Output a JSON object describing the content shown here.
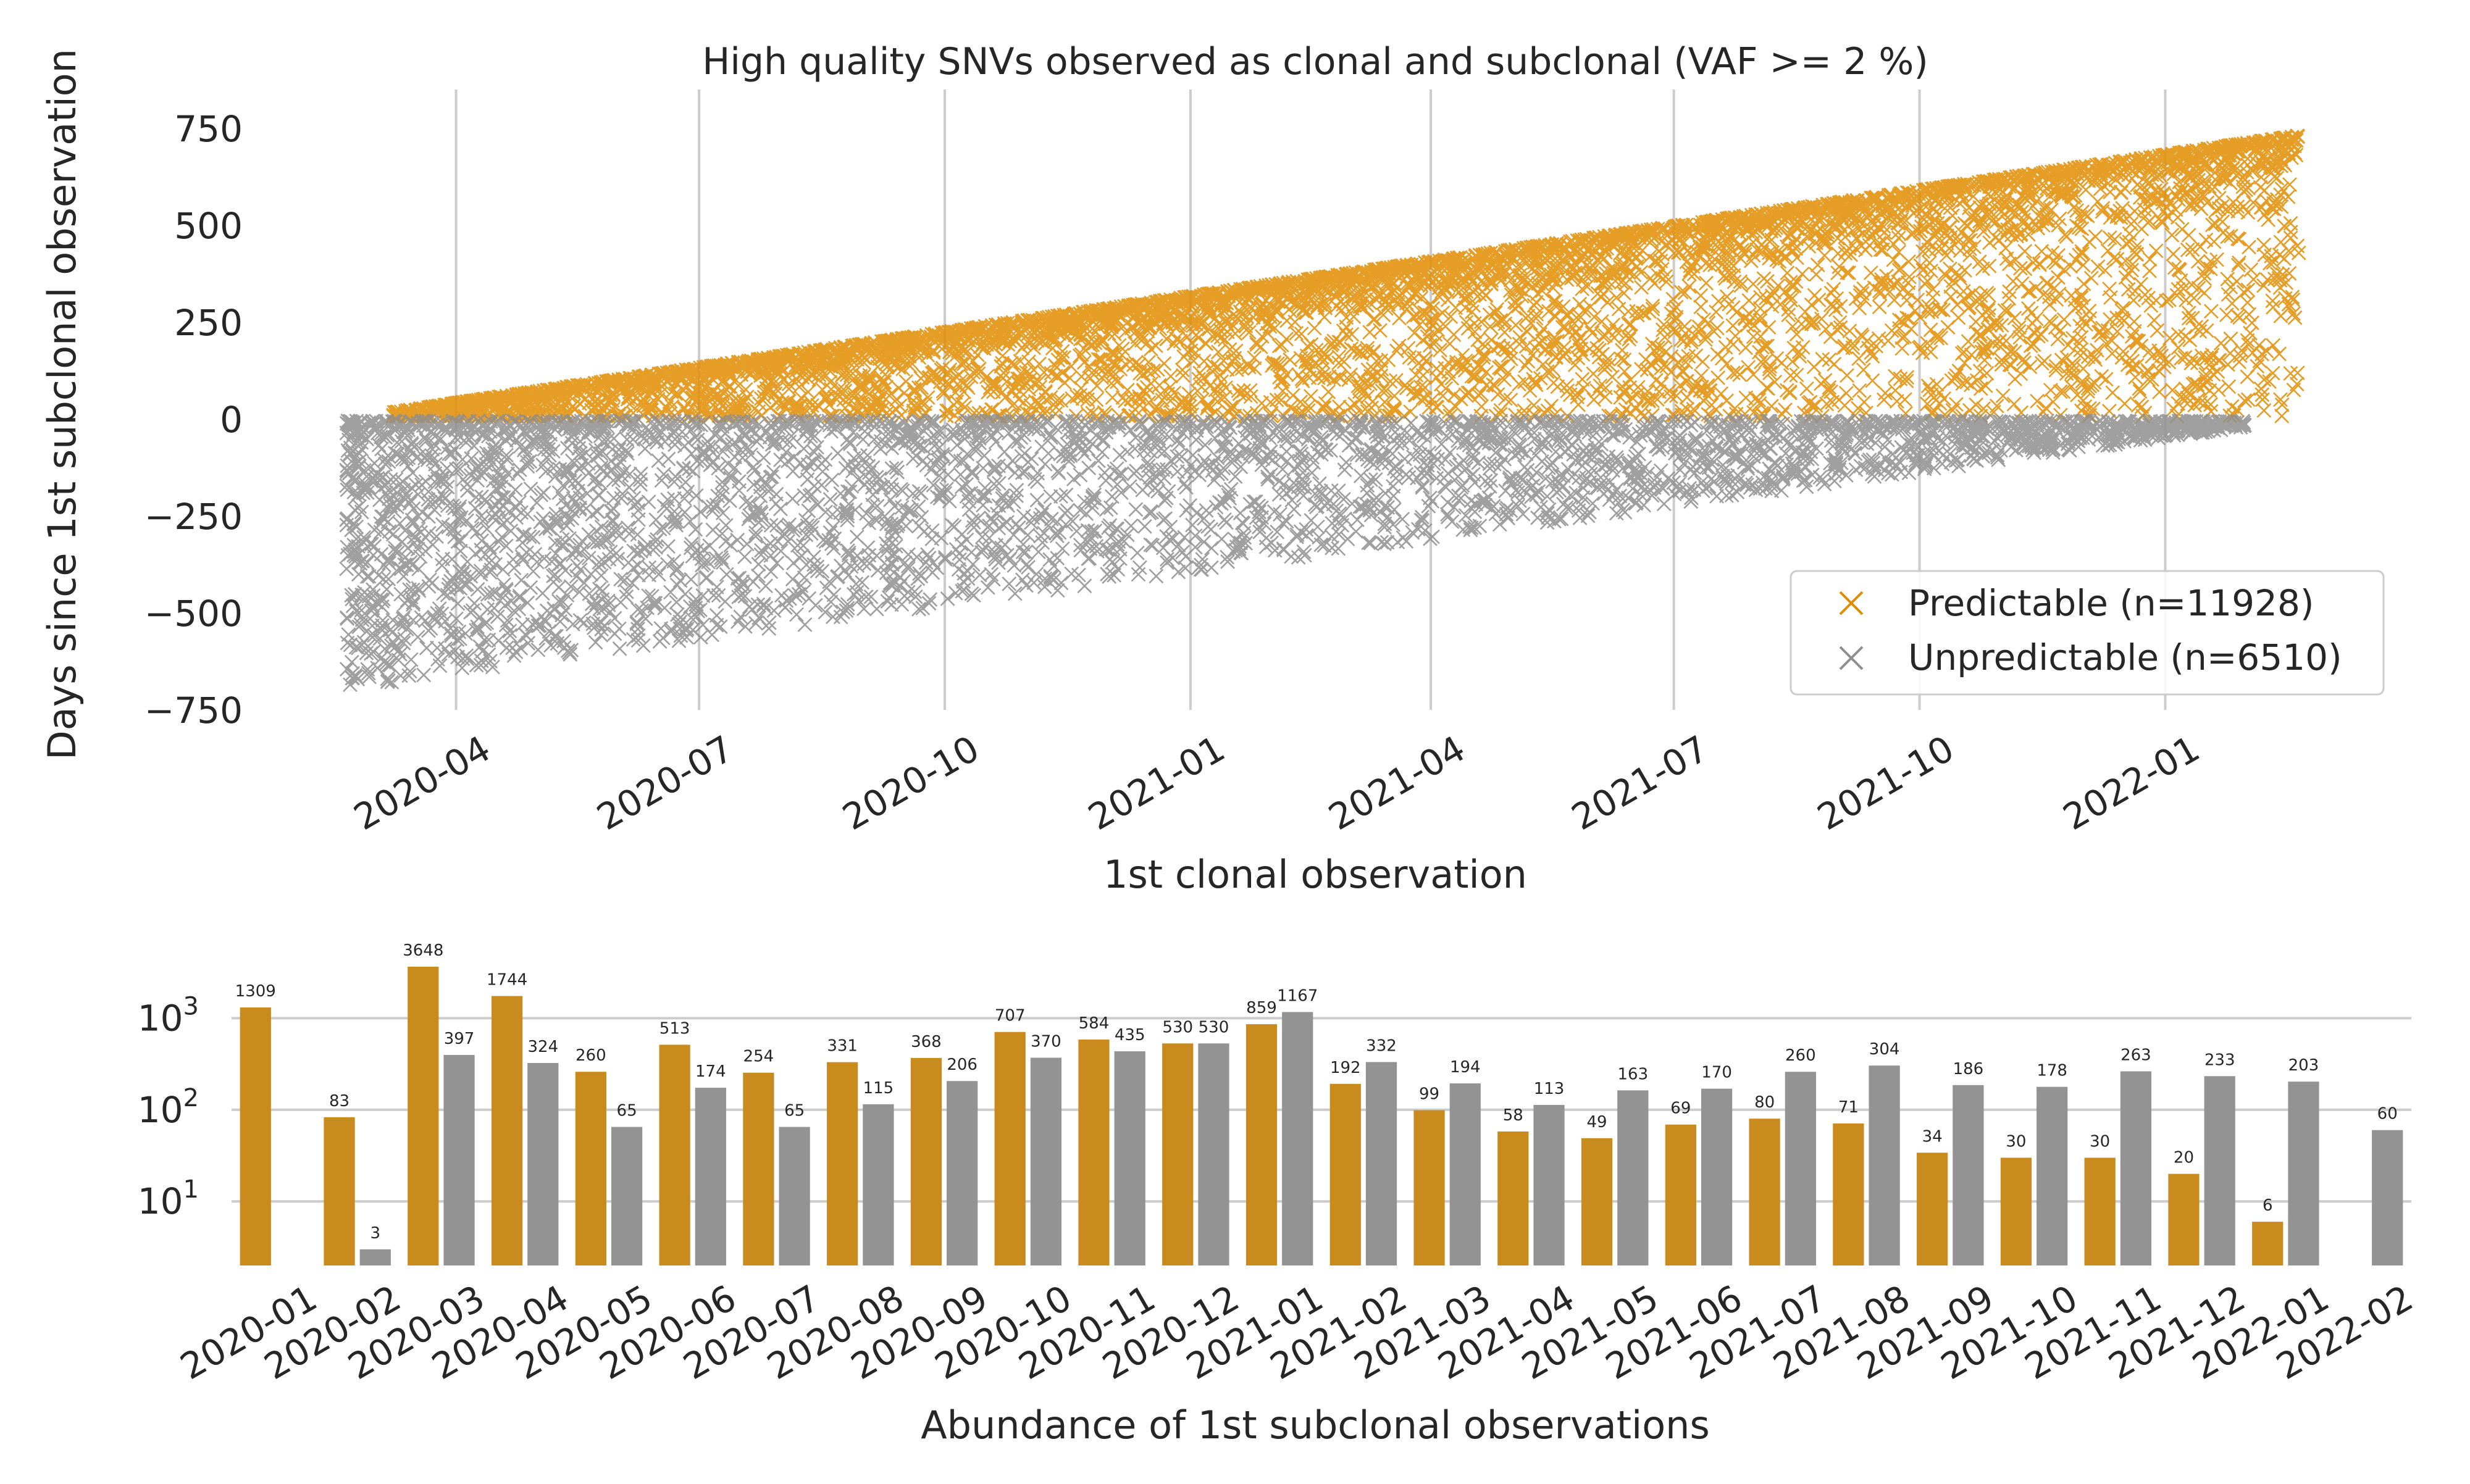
{
  "colors": {
    "predictable": "#E08C00",
    "unpredictable": "#8E8E8E",
    "bar_predictable": "#C98A1E",
    "bar_unpredictable": "#939393",
    "grid": "#CCCCCC",
    "text": "#262626"
  },
  "chart_data": [
    {
      "type": "scatter",
      "title": "High quality SNVs observed as clonal and subclonal (VAF >= 2 %)",
      "xlabel": "1st clonal observation",
      "ylabel": "Days since 1st subclonal observation",
      "xlim": [
        "2020-02-07",
        "2022-02-24"
      ],
      "ylim": [
        -750,
        850
      ],
      "x_ticks": [
        "2020-04",
        "2020-07",
        "2020-10",
        "2021-01",
        "2021-04",
        "2021-07",
        "2021-10",
        "2022-01"
      ],
      "y_ticks": [
        750,
        500,
        250,
        0,
        -250,
        -500,
        -750
      ],
      "grid_x": true,
      "grid_y": false,
      "legend_position": "lower-right",
      "marker": "x",
      "series": [
        {
          "name": "Predictable (n=11928)",
          "count": 11928,
          "y_range": [
            0,
            780
          ]
        },
        {
          "name": "Unpredictable (n=6510)",
          "count": 6510,
          "y_range": [
            -690,
            0
          ]
        }
      ]
    },
    {
      "type": "bar",
      "xlabel": "Abundance of 1st subclonal observations",
      "ylabel": "",
      "yscale": "log",
      "ylim": [
        2,
        4000
      ],
      "y_ticks": [
        "10^3",
        "10^2",
        "10^1"
      ],
      "grid_y": true,
      "categories": [
        "2020-01",
        "2020-02",
        "2020-03",
        "2020-04",
        "2020-05",
        "2020-06",
        "2020-07",
        "2020-08",
        "2020-09",
        "2020-10",
        "2020-11",
        "2020-12",
        "2021-01",
        "2021-02",
        "2021-03",
        "2021-04",
        "2021-05",
        "2021-06",
        "2021-07",
        "2021-08",
        "2021-09",
        "2021-10",
        "2021-11",
        "2021-12",
        "2022-01",
        "2022-02"
      ],
      "series": [
        {
          "name": "Predictable",
          "values": [
            1309,
            83,
            3648,
            1744,
            260,
            513,
            254,
            331,
            368,
            707,
            584,
            530,
            859,
            192,
            99,
            58,
            49,
            69,
            80,
            71,
            34,
            30,
            30,
            20,
            6,
            null
          ]
        },
        {
          "name": "Unpredictable",
          "values": [
            null,
            3,
            397,
            324,
            65,
            174,
            65,
            115,
            206,
            370,
            435,
            530,
            1167,
            332,
            194,
            113,
            163,
            170,
            260,
            304,
            186,
            178,
            263,
            233,
            203,
            60
          ]
        }
      ]
    }
  ]
}
